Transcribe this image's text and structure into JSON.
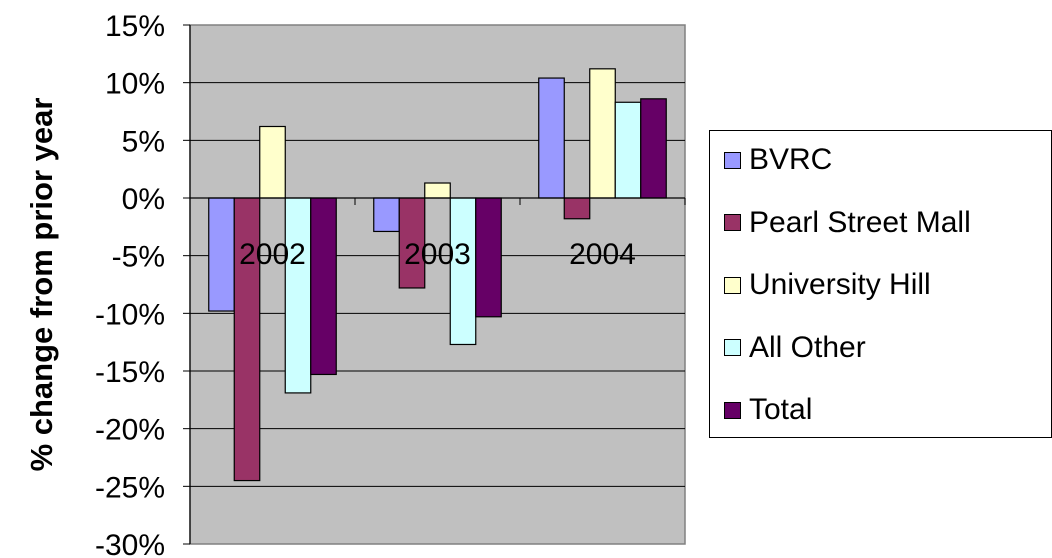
{
  "chart_data": {
    "type": "bar",
    "ylabel": "% change from prior year",
    "xlabel": "",
    "categories": [
      "2002",
      "2003",
      "2004"
    ],
    "ylim": [
      -30,
      15
    ],
    "yticks": [
      15,
      10,
      5,
      0,
      -5,
      -10,
      -15,
      -20,
      -25,
      -30
    ],
    "ytick_labels": [
      "15%",
      "10%",
      "5%",
      "0%",
      "-5%",
      "-10%",
      "-15%",
      "-20%",
      "-25%",
      "-30%"
    ],
    "grid": true,
    "legend_position": "right",
    "series": [
      {
        "name": "BVRC",
        "color": "#9999FF",
        "values": [
          -9.8,
          -2.9,
          10.4
        ]
      },
      {
        "name": "Pearl Street Mall",
        "color": "#993366",
        "values": [
          -24.5,
          -7.8,
          -1.8
        ]
      },
      {
        "name": "University Hill",
        "color": "#FFFFCC",
        "values": [
          6.2,
          1.3,
          11.2
        ]
      },
      {
        "name": "All Other",
        "color": "#CCFFFF",
        "values": [
          -16.9,
          -12.7,
          8.3
        ]
      },
      {
        "name": "Total",
        "color": "#660066",
        "values": [
          -15.3,
          -10.3,
          8.6
        ]
      }
    ]
  },
  "colors": {
    "plot_background": "#C0C0C0",
    "gridline": "#000000"
  }
}
